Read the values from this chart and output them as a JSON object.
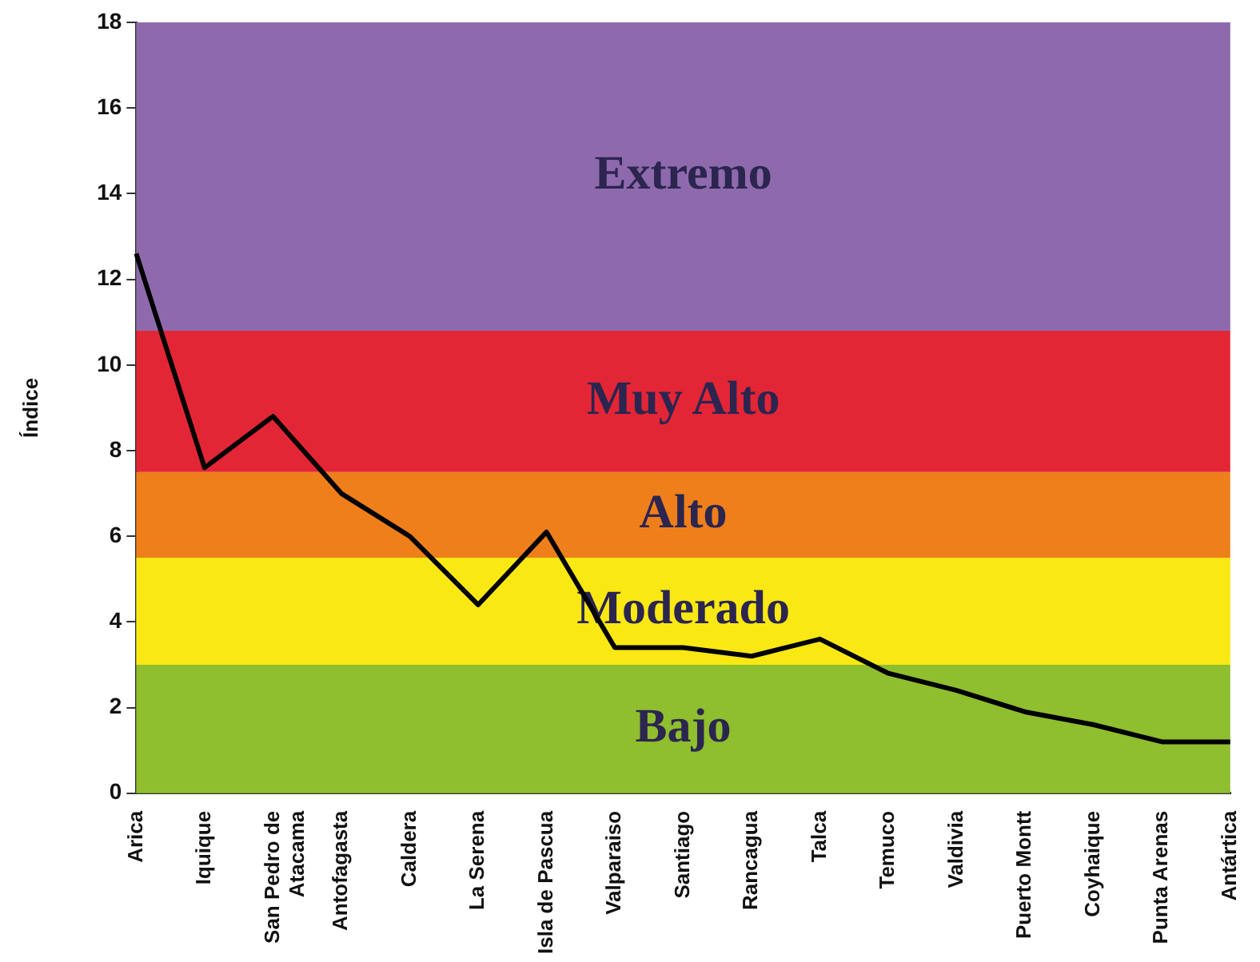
{
  "chart_data": {
    "type": "line",
    "ylabel": "Índice",
    "categories": [
      "Arica",
      "Iquique",
      "San Pedro de\nAtacama",
      "Antofagasta",
      "Caldera",
      "La Serena",
      "Isla de Pascua",
      "Valparaiso",
      "Santiago",
      "Rancagua",
      "Talca",
      "Temuco",
      "Valdivia",
      "Puerto Montt",
      "Coyhaique",
      "Punta Arenas",
      "Antártica"
    ],
    "series": [
      {
        "color": "#000000",
        "values": [
          12.6,
          7.6,
          8.8,
          7.0,
          6.0,
          4.4,
          6.1,
          3.4,
          3.4,
          3.2,
          3.6,
          2.8,
          2.4,
          1.9,
          1.6,
          1.2,
          1.2
        ]
      }
    ],
    "ylim": [
      0,
      18
    ],
    "yticks": [
      0,
      2,
      4,
      6,
      8,
      10,
      12,
      14,
      16,
      18
    ],
    "bands": [
      {
        "axis": "y",
        "from": 0,
        "to": 3,
        "label": "Bajo",
        "color": "#8fbe2e"
      },
      {
        "axis": "y",
        "from": 3,
        "to": 5.5,
        "label": "Moderado",
        "color": "#f9e814"
      },
      {
        "axis": "y",
        "from": 5.5,
        "to": 7.5,
        "label": "Alto",
        "color": "#ee7f1b"
      },
      {
        "axis": "y",
        "from": 7.5,
        "to": 10.8,
        "label": "Muy Alto",
        "color": "#e32636"
      },
      {
        "axis": "y",
        "from": 10.8,
        "to": 18,
        "label": "Extremo",
        "color": "#8e6aad"
      }
    ],
    "grid": false,
    "legend": false,
    "marker": "none",
    "line_style": "solid"
  }
}
